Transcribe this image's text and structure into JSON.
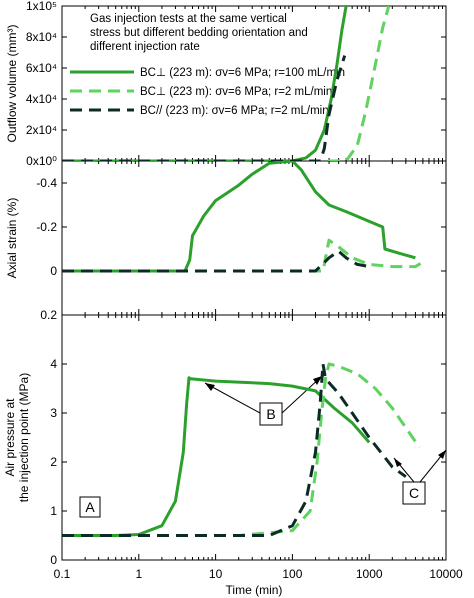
{
  "figure": {
    "xlabel": "Time (min)",
    "x_ticks": [
      "0.1",
      "1",
      "10",
      "100",
      "1000",
      "10000"
    ],
    "note_lines": [
      "Gas injection tests at the same vertical",
      "stress but different bedding orientation and",
      "different injection rate"
    ],
    "legend": [
      "BC⊥ (223 m): σv=6 MPa; r=100 mL/min",
      "BC⊥ (223 m): σv=6 MPa; r=2 mL/min",
      "BC// (223 m): σv=6 MPa; r=2 mL/min"
    ],
    "annotations": {
      "A": "A",
      "B": "B",
      "C": "C"
    },
    "colors": {
      "s1": "#2ca02c",
      "s2": "#5fd35f",
      "s3": "#0d2b26",
      "frame": "#000000"
    }
  },
  "chart_data": [
    {
      "type": "line",
      "ylabel": "Outflow volume (mm³)",
      "y_ticks": [
        "0x10⁰",
        "2x10⁴",
        "4x10⁴",
        "6x10⁴",
        "8x10⁴",
        "1x10⁵"
      ],
      "ylim": [
        0,
        100000
      ],
      "xlim": [
        0.1,
        10000
      ],
      "x_scale": "log",
      "series": [
        {
          "name": "BC⊥ (223 m): σv=6 MPa; r=100 mL/min",
          "style": "solid",
          "x": [
            0.1,
            100,
            150,
            200,
            260,
            320,
            380,
            440,
            500
          ],
          "y": [
            0,
            0,
            2000,
            7000,
            20000,
            40000,
            62000,
            84000,
            100000
          ]
        },
        {
          "name": "BC⊥ (223 m): σv=6 MPa; r=2 mL/min",
          "style": "dashed",
          "x": [
            0.1,
            500,
            700,
            900,
            1200,
            1500,
            1800
          ],
          "y": [
            0,
            0,
            10000,
            32000,
            62000,
            86000,
            100000
          ]
        },
        {
          "name": "BC// (223 m): σv=6 MPa; r=2 mL/min",
          "style": "dashed",
          "x": [
            0.1,
            230,
            260,
            300,
            380,
            480
          ],
          "y": [
            0,
            0,
            8000,
            30000,
            52000,
            68000
          ]
        }
      ]
    },
    {
      "type": "line",
      "ylabel": "Axial strain (%)",
      "y_ticks": [
        "-0.4",
        "-0.2",
        "0",
        "0.2"
      ],
      "ylim": [
        0.2,
        -0.5
      ],
      "xlim": [
        0.1,
        10000
      ],
      "x_scale": "log",
      "series": [
        {
          "name": "BC⊥ (223 m): σv=6 MPa; r=100 mL/min",
          "style": "solid",
          "x": [
            0.1,
            4,
            4.6,
            5,
            7,
            10,
            20,
            30,
            50,
            100,
            130,
            200,
            300,
            500,
            800,
            1500,
            1600,
            2500,
            4000
          ],
          "y": [
            0,
            0,
            -0.05,
            -0.16,
            -0.25,
            -0.32,
            -0.39,
            -0.44,
            -0.49,
            -0.5,
            -0.46,
            -0.36,
            -0.3,
            -0.27,
            -0.24,
            -0.2,
            -0.1,
            -0.08,
            -0.06
          ]
        },
        {
          "name": "BC⊥ (223 m): σv=6 MPa; r=2 mL/min",
          "style": "dashed",
          "x": [
            0.1,
            250,
            300,
            400,
            600,
            1000,
            2000,
            4000,
            5000
          ],
          "y": [
            0,
            0,
            -0.14,
            -0.11,
            -0.06,
            -0.03,
            -0.02,
            -0.02,
            -0.04
          ]
        },
        {
          "name": "BC// (223 m): σv=6 MPa; r=2 mL/min",
          "style": "dashed",
          "x": [
            0.1,
            200,
            300,
            400,
            500,
            700,
            1000
          ],
          "y": [
            0,
            0,
            -0.06,
            -0.09,
            -0.06,
            -0.03,
            -0.02
          ]
        }
      ]
    },
    {
      "type": "line",
      "ylabel": "Air pressure at the injection point (MPa)",
      "y_ticks": [
        "0",
        "1",
        "2",
        "3",
        "4"
      ],
      "ylim": [
        0,
        5
      ],
      "xlim": [
        0.1,
        10000
      ],
      "x_scale": "log",
      "series": [
        {
          "name": "BC⊥ (223 m): σv=6 MPa; r=100 mL/min",
          "style": "solid",
          "x": [
            0.1,
            0.5,
            1,
            2,
            3,
            3.8,
            4.2,
            4.5,
            4.7,
            10,
            50,
            100,
            200,
            350,
            600,
            1000
          ],
          "y": [
            0.5,
            0.5,
            0.52,
            0.7,
            1.2,
            2.2,
            3.2,
            3.72,
            3.7,
            3.65,
            3.6,
            3.55,
            3.45,
            3.1,
            2.8,
            2.4
          ]
        },
        {
          "name": "BC⊥ (223 m): σv=6 MPa; r=2 mL/min",
          "style": "dashed",
          "x": [
            0.1,
            20,
            100,
            170,
            210,
            240,
            270,
            300,
            400,
            700,
            1200,
            2000,
            3000,
            4500
          ],
          "y": [
            0.5,
            0.5,
            0.6,
            1.0,
            2.0,
            3.0,
            3.7,
            4.0,
            3.95,
            3.8,
            3.5,
            3.1,
            2.7,
            2.3
          ]
        },
        {
          "name": "BC// (223 m): σv=6 MPa; r=2 mL/min",
          "style": "dashed",
          "x": [
            0.1,
            3,
            10,
            50,
            100,
            150,
            200,
            230,
            250,
            270,
            400,
            600,
            1000,
            2000,
            3000
          ],
          "y": [
            0.5,
            0.5,
            0.5,
            0.5,
            0.7,
            1.2,
            2.2,
            3.2,
            4.0,
            3.7,
            3.4,
            3.0,
            2.5,
            1.9,
            1.7
          ]
        }
      ]
    }
  ]
}
